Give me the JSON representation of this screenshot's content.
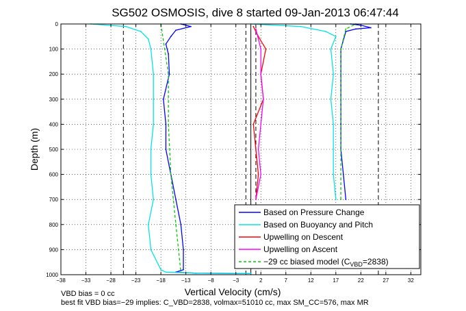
{
  "chart_data": {
    "type": "line",
    "title": "SG502 OSMOSIS, dive 8 started 09-Jan-2013 06:47:44",
    "xlabel": "Vertical Velocity (cm/s)",
    "ylabel": "Depth (m)",
    "xlim": [
      -38,
      34
    ],
    "ylim": [
      1000,
      0
    ],
    "y_reversed": true,
    "grid": true,
    "xticks": [
      -38,
      -33,
      -28,
      -23,
      -18,
      -13,
      -8,
      -3,
      2,
      7,
      12,
      17,
      22,
      27,
      32
    ],
    "yticks": [
      0,
      100,
      200,
      300,
      400,
      500,
      600,
      700,
      800,
      900,
      1000
    ],
    "reference_lines": {
      "solid_vertical": [
        0
      ],
      "dashed_vertical": [
        -25.5,
        -1,
        1,
        25.5
      ],
      "color": "#000000"
    },
    "legend_position": "bottom-right",
    "series": [
      {
        "name": "Based on Pressure Change",
        "color": "#0000ff",
        "style": "solid",
        "points": [
          [
            -14,
            0
          ],
          [
            -12,
            10
          ],
          [
            -15,
            25
          ],
          [
            -16,
            50
          ],
          [
            -17,
            80
          ],
          [
            -16.5,
            120
          ],
          [
            -16.3,
            200
          ],
          [
            -17.5,
            300
          ],
          [
            -17,
            400
          ],
          [
            -17,
            500
          ],
          [
            -16,
            600
          ],
          [
            -15,
            700
          ],
          [
            -14,
            800
          ],
          [
            -13.5,
            900
          ],
          [
            -13.5,
            980
          ],
          [
            -15,
            990
          ],
          [
            -11,
            994
          ],
          [
            -3,
            995
          ],
          [
            0,
            995
          ]
        ]
      },
      {
        "name": "Based on Buoyancy and Pitch",
        "color": "#00e5e5",
        "style": "solid",
        "points": [
          [
            -32,
            0
          ],
          [
            -25,
            10
          ],
          [
            -22,
            30
          ],
          [
            -20.5,
            60
          ],
          [
            -20,
            100
          ],
          [
            -19.5,
            200
          ],
          [
            -19.5,
            300
          ],
          [
            -19.5,
            400
          ],
          [
            -20,
            500
          ],
          [
            -20,
            600
          ],
          [
            -19.5,
            700
          ],
          [
            -20.5,
            800
          ],
          [
            -20,
            900
          ],
          [
            -18,
            980
          ],
          [
            -17,
            990
          ],
          [
            -10,
            994
          ],
          [
            0,
            995
          ]
        ]
      },
      {
        "name": "Upwelling on Descent",
        "color": "#ff0000",
        "style": "solid",
        "points": [
          [
            0.5,
            10
          ],
          [
            1.5,
            50
          ],
          [
            3,
            100
          ],
          [
            2,
            200
          ],
          [
            2.5,
            300
          ],
          [
            0.5,
            400
          ],
          [
            1,
            500
          ],
          [
            1.5,
            600
          ],
          [
            1,
            700
          ]
        ]
      },
      {
        "name": "Upwelling on Ascent",
        "color": "#ff00ff",
        "style": "solid",
        "points": [
          [
            1,
            700
          ],
          [
            2,
            600
          ],
          [
            1.5,
            500
          ],
          [
            2,
            400
          ],
          [
            2.5,
            300
          ],
          [
            2,
            200
          ],
          [
            2,
            100
          ],
          [
            1,
            20
          ]
        ]
      },
      {
        "name": "-29 cc biased model (C_VBD=2838)",
        "color": "#00cc00",
        "style": "dashed",
        "points": [
          [
            -18,
            0
          ],
          [
            -16.5,
            200
          ],
          [
            -16.5,
            400
          ],
          [
            -16,
            600
          ],
          [
            -15,
            800
          ],
          [
            -14,
            990
          ]
        ]
      },
      {
        "name": "",
        "color": "#0000ff",
        "style": "solid",
        "points": [
          [
            19,
            700
          ],
          [
            18.5,
            600
          ],
          [
            18,
            500
          ],
          [
            18,
            400
          ],
          [
            18,
            300
          ],
          [
            18,
            200
          ],
          [
            18,
            100
          ],
          [
            19,
            30
          ],
          [
            21,
            20
          ],
          [
            24,
            15
          ],
          [
            22,
            5
          ],
          [
            20,
            0
          ]
        ]
      },
      {
        "name": "",
        "color": "#00e5e5",
        "style": "solid",
        "points": [
          [
            17,
            700
          ],
          [
            16.5,
            600
          ],
          [
            16.5,
            500
          ],
          [
            16.5,
            400
          ],
          [
            16,
            300
          ],
          [
            16.5,
            200
          ],
          [
            16,
            100
          ],
          [
            17,
            50
          ],
          [
            15,
            30
          ],
          [
            10,
            10
          ],
          [
            0,
            0
          ]
        ]
      },
      {
        "name": "",
        "color": "#00cc00",
        "style": "dashed",
        "points": [
          [
            18,
            700
          ],
          [
            18,
            500
          ],
          [
            18,
            300
          ],
          [
            18,
            100
          ],
          [
            19,
            20
          ],
          [
            21,
            0
          ]
        ]
      }
    ]
  },
  "legend": {
    "items": [
      {
        "label": "Based on Pressure Change",
        "color": "#0000ff",
        "style": "solid"
      },
      {
        "label": "Based on Buoyancy and Pitch",
        "color": "#00e5e5",
        "style": "solid"
      },
      {
        "label": "Upwelling on Descent",
        "color": "#ff0000",
        "style": "solid"
      },
      {
        "label": "Upwelling on Ascent",
        "color": "#ff00ff",
        "style": "solid"
      }
    ],
    "model_prefix": "−29 cc biased model (C",
    "model_sub": "VBD",
    "model_suffix": "=2838)",
    "model_color": "#00cc00"
  },
  "footer": {
    "line1": "VBD bias = 0 cc",
    "line2": "best fit VBD bias=−29 implies: C_VBD=2838, volmax=51010 cc, max SM_CC=576, max MR"
  }
}
